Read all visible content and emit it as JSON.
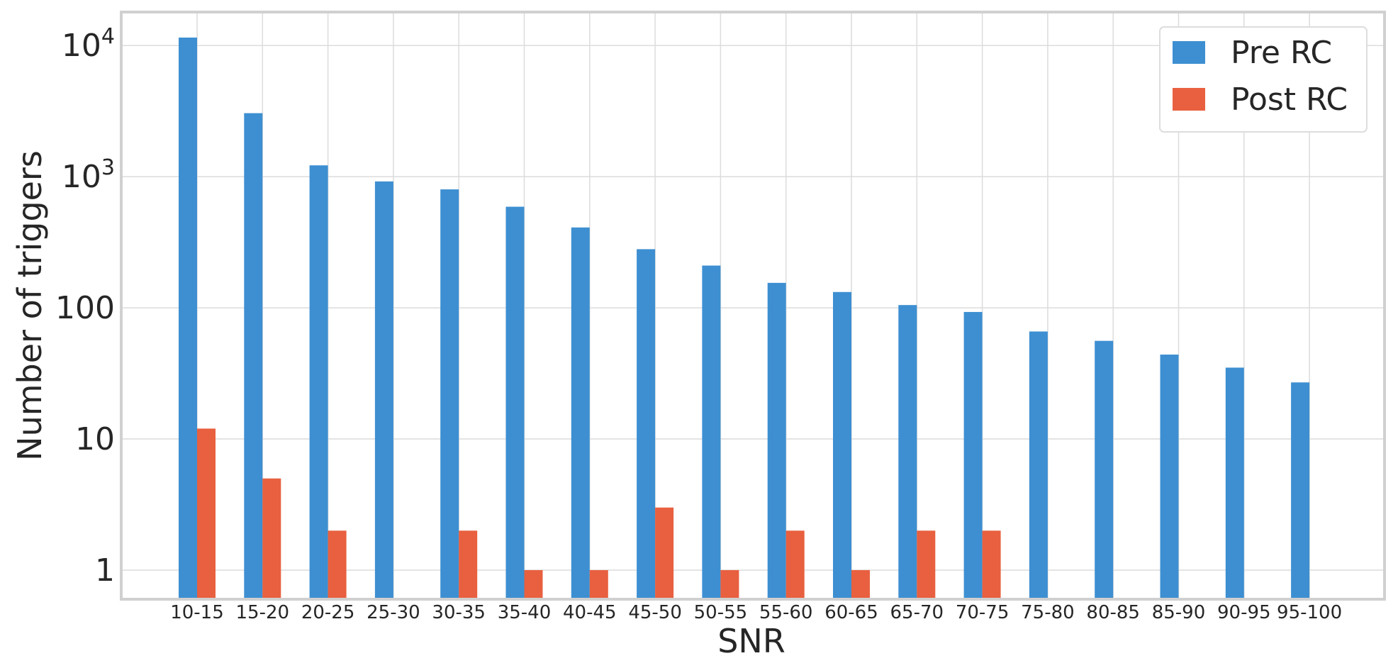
{
  "chart_data": {
    "type": "bar",
    "xlabel": "SNR",
    "ylabel": "Number of triggers",
    "yscale": "log",
    "ylim": [
      0.6,
      18000
    ],
    "grid": true,
    "legend_position": "top-right",
    "y_tick_labels": [
      {
        "value": 1,
        "label": "1"
      },
      {
        "value": 10,
        "label": "10"
      },
      {
        "value": 100,
        "label": "100"
      },
      {
        "value": 1000,
        "label": "10",
        "sup": "3"
      },
      {
        "value": 10000,
        "label": "10",
        "sup": "4"
      }
    ],
    "categories": [
      "10-15",
      "15-20",
      "20-25",
      "25-30",
      "30-35",
      "35-40",
      "40-45",
      "45-50",
      "50-55",
      "55-60",
      "60-65",
      "65-70",
      "70-75",
      "75-80",
      "80-85",
      "85-90",
      "90-95",
      "95-100"
    ],
    "series": [
      {
        "name": "Pre RC",
        "color": "#3d8fd1",
        "values": [
          11500,
          3050,
          1220,
          920,
          800,
          590,
          410,
          280,
          210,
          155,
          132,
          105,
          93,
          66,
          56,
          44,
          35,
          27
        ]
      },
      {
        "name": "Post RC",
        "color": "#e8603f",
        "values": [
          12,
          5,
          2,
          null,
          2,
          1,
          1,
          3,
          1,
          2,
          1,
          2,
          2,
          null,
          null,
          null,
          null,
          null
        ]
      }
    ]
  }
}
